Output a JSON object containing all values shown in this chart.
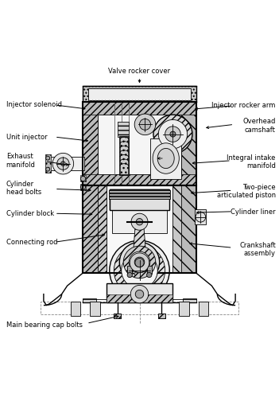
{
  "bg": "#ffffff",
  "lc": "#000000",
  "gray_light": "#e8e8e8",
  "gray_med": "#cccccc",
  "gray_dark": "#999999",
  "gray_hatch": "#bbbbbb",
  "labels": {
    "valve_rocker_cover": "Valve rocker cover",
    "injector_solenoid": "Injector solenoid",
    "injector_rocker_arm": "Injector rocker arm",
    "overhead_camshaft": "Overhead\ncamshaft",
    "unit_injector": "Unit injector",
    "exhaust_manifold": "Exhaust\nmanifold",
    "integral_intake": "Integral intake\nmanifold",
    "cylinder_head_bolts": "Cylinder\nhead bolts",
    "two_piece_piston": "Two-piece\narticulated piston",
    "cylinder_block": "Cylinder block",
    "cylinder_liner": "Cylinder liner",
    "connecting_rod": "Connecting rod",
    "crankshaft_assembly": "Crankshaft\nassembly",
    "main_bearing_cap": "Main bearing cap bolts"
  },
  "label_pos": {
    "valve_rocker_cover": [
      0.5,
      0.972,
      "center",
      "bottom"
    ],
    "injector_solenoid": [
      0.02,
      0.865,
      "left",
      "center"
    ],
    "injector_rocker_arm": [
      0.99,
      0.862,
      "right",
      "center"
    ],
    "overhead_camshaft": [
      0.99,
      0.79,
      "right",
      "center"
    ],
    "unit_injector": [
      0.02,
      0.75,
      "left",
      "center"
    ],
    "exhaust_manifold": [
      0.02,
      0.665,
      "left",
      "center"
    ],
    "integral_intake": [
      0.99,
      0.66,
      "right",
      "center"
    ],
    "cylinder_head_bolts": [
      0.02,
      0.565,
      "left",
      "center"
    ],
    "two_piece_piston": [
      0.99,
      0.555,
      "right",
      "center"
    ],
    "cylinder_block": [
      0.02,
      0.475,
      "left",
      "center"
    ],
    "cylinder_liner": [
      0.99,
      0.48,
      "right",
      "center"
    ],
    "connecting_rod": [
      0.02,
      0.37,
      "left",
      "center"
    ],
    "crankshaft_assembly": [
      0.99,
      0.345,
      "right",
      "center"
    ],
    "main_bearing_cap": [
      0.02,
      0.075,
      "left",
      "center"
    ]
  },
  "arrows": [
    {
      "from": [
        0.5,
        0.965
      ],
      "to": [
        0.5,
        0.935
      ]
    },
    {
      "from": [
        0.195,
        0.865
      ],
      "to": [
        0.315,
        0.85
      ]
    },
    {
      "from": [
        0.835,
        0.862
      ],
      "to": [
        0.69,
        0.85
      ]
    },
    {
      "from": [
        0.84,
        0.795
      ],
      "to": [
        0.73,
        0.782
      ]
    },
    {
      "from": [
        0.195,
        0.75
      ],
      "to": [
        0.325,
        0.735
      ]
    },
    {
      "from": [
        0.16,
        0.662
      ],
      "to": [
        0.255,
        0.648
      ]
    },
    {
      "from": [
        0.83,
        0.665
      ],
      "to": [
        0.68,
        0.655
      ]
    },
    {
      "from": [
        0.195,
        0.563
      ],
      "to": [
        0.335,
        0.558
      ]
    },
    {
      "from": [
        0.835,
        0.558
      ],
      "to": [
        0.675,
        0.548
      ]
    },
    {
      "from": [
        0.195,
        0.475
      ],
      "to": [
        0.34,
        0.472
      ]
    },
    {
      "from": [
        0.835,
        0.482
      ],
      "to": [
        0.695,
        0.478
      ]
    },
    {
      "from": [
        0.195,
        0.372
      ],
      "to": [
        0.385,
        0.4
      ]
    },
    {
      "from": [
        0.835,
        0.352
      ],
      "to": [
        0.67,
        0.368
      ]
    },
    {
      "from": [
        0.31,
        0.08
      ],
      "to": [
        0.435,
        0.108
      ]
    }
  ]
}
